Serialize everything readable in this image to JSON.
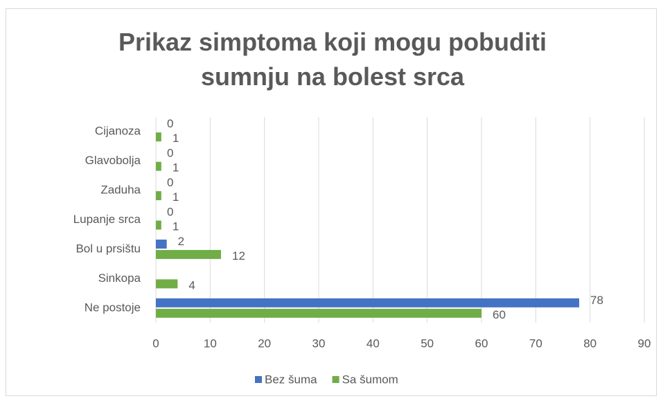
{
  "chart_data": {
    "type": "bar",
    "orientation": "horizontal",
    "title": "Prikaz simptoma koji mogu pobuditi sumnju na bolest srca",
    "categories": [
      "Cijanoza",
      "Glavobolja",
      "Zaduha",
      "Lupanje srca",
      "Bol u prsištu",
      "Sinkopa",
      "Ne postoje"
    ],
    "series": [
      {
        "name": "Bez šuma",
        "color": "#4472c4",
        "values": [
          0,
          0,
          0,
          0,
          2,
          null,
          78
        ]
      },
      {
        "name": "Sa šumom",
        "color": "#70ad47",
        "values": [
          1,
          1,
          1,
          1,
          12,
          4,
          60
        ]
      }
    ],
    "xlim": [
      0,
      90
    ],
    "xticks": [
      0,
      10,
      20,
      30,
      40,
      50,
      60,
      70,
      80,
      90
    ],
    "grid": true,
    "legend": "bottom"
  }
}
